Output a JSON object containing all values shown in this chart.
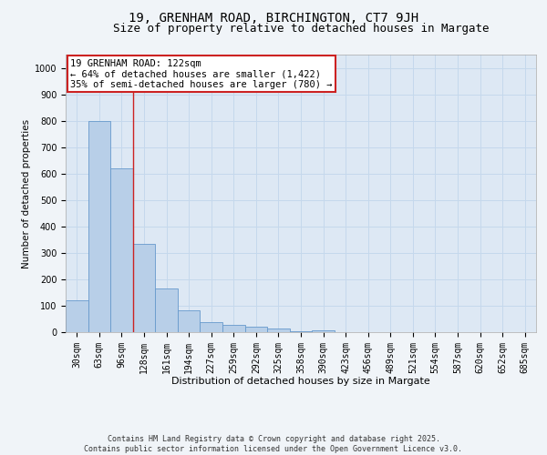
{
  "title": "19, GRENHAM ROAD, BIRCHINGTON, CT7 9JH",
  "subtitle": "Size of property relative to detached houses in Margate",
  "xlabel": "Distribution of detached houses by size in Margate",
  "ylabel": "Number of detached properties",
  "bar_values": [
    120,
    800,
    620,
    335,
    165,
    82,
    38,
    27,
    22,
    15,
    5,
    8,
    0,
    0,
    0,
    0,
    0,
    0,
    0,
    0,
    0
  ],
  "categories": [
    "30sqm",
    "63sqm",
    "96sqm",
    "128sqm",
    "161sqm",
    "194sqm",
    "227sqm",
    "259sqm",
    "292sqm",
    "325sqm",
    "358sqm",
    "390sqm",
    "423sqm",
    "456sqm",
    "489sqm",
    "521sqm",
    "554sqm",
    "587sqm",
    "620sqm",
    "652sqm",
    "685sqm"
  ],
  "bar_color": "#b8cfe8",
  "bar_edge_color": "#6699cc",
  "grid_color": "#c5d8ec",
  "vline_x": 2.5,
  "vline_color": "#cc2222",
  "annotation_box_text": "19 GRENHAM ROAD: 122sqm\n← 64% of detached houses are smaller (1,422)\n35% of semi-detached houses are larger (780) →",
  "annotation_box_color": "#cc2222",
  "annotation_box_facecolor": "white",
  "ylim": [
    0,
    1050
  ],
  "yticks": [
    0,
    100,
    200,
    300,
    400,
    500,
    600,
    700,
    800,
    900,
    1000
  ],
  "footer_line1": "Contains HM Land Registry data © Crown copyright and database right 2025.",
  "footer_line2": "Contains public sector information licensed under the Open Government Licence v3.0.",
  "bg_color": "#dde8f4",
  "fig_bg_color": "#f0f4f8",
  "title_fontsize": 10,
  "subtitle_fontsize": 9,
  "xlabel_fontsize": 8,
  "ylabel_fontsize": 7.5,
  "tick_fontsize": 7,
  "annotation_fontsize": 7.5,
  "footer_fontsize": 6
}
